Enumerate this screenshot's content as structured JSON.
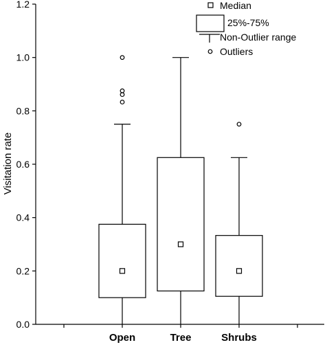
{
  "chart_data": {
    "type": "boxplot",
    "title": "",
    "xlabel": "",
    "ylabel": "Visitation rate",
    "ylim": [
      0,
      1.2
    ],
    "yticks": [
      "0.0",
      "0.2",
      "0.4",
      "0.6",
      "0.8",
      "1.0",
      "1.2"
    ],
    "categories": [
      "Open",
      "Tree",
      "Shrubs"
    ],
    "boxes": [
      {
        "category": "Open",
        "median": 0.2,
        "q1": 0.1,
        "q3": 0.375,
        "whisker_low": 0.0,
        "whisker_high": 0.75,
        "outliers": [
          0.833,
          0.861,
          0.875,
          1.0
        ]
      },
      {
        "category": "Tree",
        "median": 0.3,
        "q1": 0.125,
        "q3": 0.625,
        "whisker_low": 0.0,
        "whisker_high": 1.0,
        "outliers": []
      },
      {
        "category": "Shrubs",
        "median": 0.2,
        "q1": 0.105,
        "q3": 0.333,
        "whisker_low": 0.0,
        "whisker_high": 0.625,
        "outliers": [
          0.75
        ]
      }
    ],
    "legend": {
      "position": "top-right",
      "entries": [
        "Median",
        "25%-75%",
        "Non-Outlier range",
        "Outliers"
      ]
    },
    "grid": false
  }
}
